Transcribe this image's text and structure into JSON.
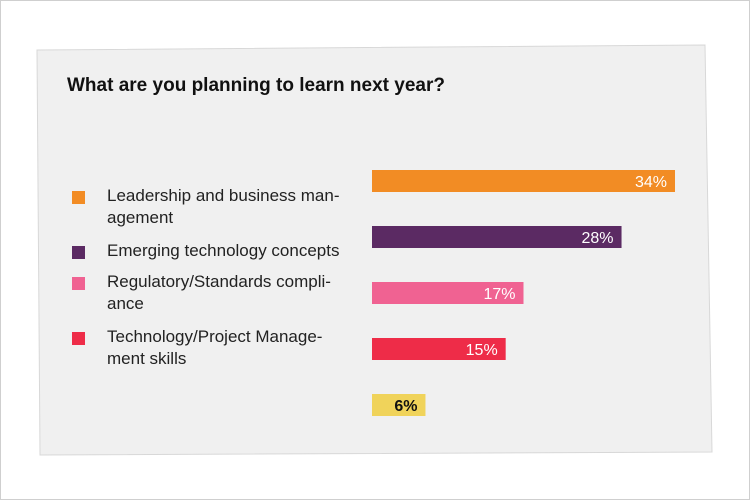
{
  "title": "What are you planning to learn next year?",
  "colors": {
    "card_bg": "#f0f0f0",
    "card_border": "#d8d8d8",
    "leadership": "#f28c24",
    "emerging": "#5b2a63",
    "regulatory": "#f06292",
    "tech_pm": "#ee2c48",
    "other": "#f0d35a"
  },
  "legend": [
    {
      "label": "Leadership and business man-agement",
      "color": "#f28c24"
    },
    {
      "label": "Emerging technology concepts",
      "color": "#5b2a63"
    },
    {
      "label": "Regulatory/Standards compli-ance",
      "color": "#f06292"
    },
    {
      "label": "Technology/Project Manage-ment skills",
      "color": "#ee2c48"
    }
  ],
  "chart_data": {
    "type": "bar",
    "orientation": "horizontal",
    "title": "What are you planning to learn next year?",
    "categories": [
      "Leadership and business man-agement",
      "Emerging technology concepts",
      "Regulatory/Standards compli-ance",
      "Technology/Project Manage-ment skills",
      ""
    ],
    "values": [
      34,
      28,
      17,
      15,
      6
    ],
    "data_labels": [
      "34%",
      "28%",
      "17%",
      "15%",
      "6%"
    ],
    "colors": [
      "#f28c24",
      "#5b2a63",
      "#f06292",
      "#ee2c48",
      "#f0d35a"
    ],
    "label_colors": [
      "#ffffff",
      "#ffffff",
      "#ffffff",
      "#ffffff",
      "#111111"
    ],
    "xlim": [
      0,
      34
    ],
    "grid": false,
    "legend_position": "left"
  }
}
